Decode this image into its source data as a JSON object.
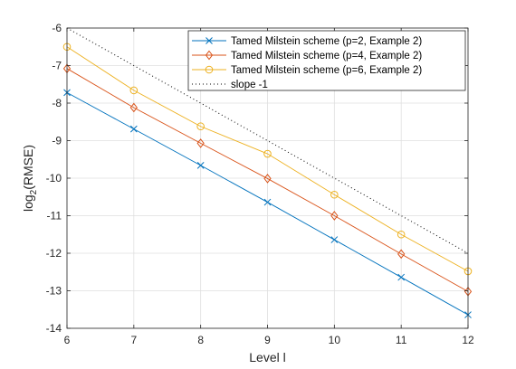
{
  "chart_data": {
    "type": "line",
    "title": "",
    "xlabel": "Level l",
    "ylabel": "log",
    "ylabel_subscript": "2",
    "ylabel_suffix": "(RMSE)",
    "xlim": [
      6,
      12
    ],
    "ylim": [
      -14,
      -6
    ],
    "xticks": [
      6,
      7,
      8,
      9,
      10,
      11,
      12
    ],
    "yticks": [
      -14,
      -13,
      -12,
      -11,
      -10,
      -9,
      -8,
      -7,
      -6
    ],
    "grid": true,
    "legend_position": "top-right",
    "x": [
      6,
      7,
      8,
      9,
      10,
      11,
      12
    ],
    "series": [
      {
        "name": "Tamed Milstein scheme (p=2, Example 2)",
        "values": [
          -7.72,
          -8.69,
          -9.66,
          -10.64,
          -11.64,
          -12.64,
          -13.64
        ],
        "color": "#0072BD",
        "marker": "x",
        "dash": ""
      },
      {
        "name": "Tamed Milstein scheme (p=4, Example 2)",
        "values": [
          -7.08,
          -8.12,
          -9.07,
          -10.01,
          -11.0,
          -12.02,
          -13.02
        ],
        "color": "#D95319",
        "marker": "diamond",
        "dash": ""
      },
      {
        "name": "Tamed Milstein scheme (p=6, Example 2)",
        "values": [
          -6.5,
          -7.66,
          -8.62,
          -9.35,
          -10.44,
          -11.5,
          -12.48
        ],
        "color": "#EDB120",
        "marker": "circle",
        "dash": ""
      },
      {
        "name": "slope -1",
        "values": [
          -6,
          -7,
          -8,
          -9,
          -10,
          -11,
          -12
        ],
        "color": "#000000",
        "marker": "none",
        "dash": "1,3"
      }
    ]
  }
}
